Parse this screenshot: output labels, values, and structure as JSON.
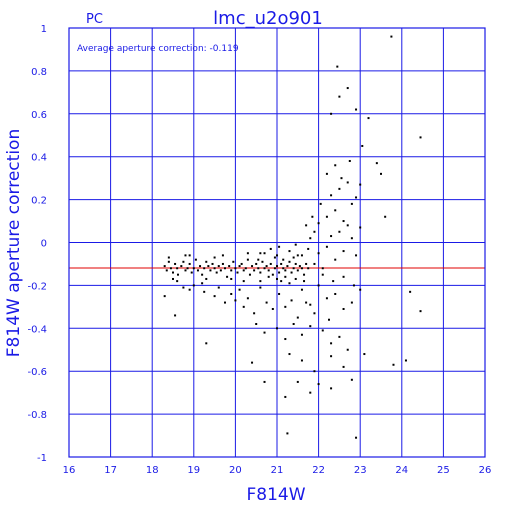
{
  "chart_data": {
    "type": "scatter",
    "corner_label": "PC",
    "title": "lmc_u2o901",
    "xlabel": "F814W",
    "ylabel": "F814W aperture correction",
    "annotation": "Average aperture correction: -0.119",
    "xlim": [
      16,
      26
    ],
    "ylim": [
      -1,
      1
    ],
    "xticks": [
      16,
      17,
      18,
      19,
      20,
      21,
      22,
      23,
      24,
      25,
      26
    ],
    "yticks": [
      -1,
      -0.8,
      -0.6,
      -0.4,
      -0.2,
      0,
      0.2,
      0.4,
      0.6,
      0.8,
      1
    ],
    "ytick_labels": [
      "-1",
      "-0.8",
      "-0.6",
      "-0.4",
      "-0.2",
      "0",
      "0.2",
      "0.4",
      "0.6",
      "0.8",
      "1"
    ],
    "grid": true,
    "reference_line": {
      "y": -0.119,
      "color": "#e00000"
    },
    "colors": {
      "axes": "#1a1ae6",
      "points": "#000000",
      "reference": "#e00000"
    },
    "points": [
      [
        18.3,
        -0.11
      ],
      [
        18.35,
        -0.13
      ],
      [
        18.4,
        -0.09
      ],
      [
        18.45,
        -0.12
      ],
      [
        18.5,
        -0.14
      ],
      [
        18.55,
        -0.1
      ],
      [
        18.6,
        -0.12
      ],
      [
        18.62,
        -0.15
      ],
      [
        18.7,
        -0.11
      ],
      [
        18.75,
        -0.09
      ],
      [
        18.8,
        -0.13
      ],
      [
        18.85,
        -0.12
      ],
      [
        18.9,
        -0.1
      ],
      [
        18.95,
        -0.14
      ],
      [
        19.0,
        -0.12
      ],
      [
        19.05,
        -0.08
      ],
      [
        19.1,
        -0.13
      ],
      [
        19.15,
        -0.11
      ],
      [
        19.2,
        -0.15
      ],
      [
        19.25,
        -0.12
      ],
      [
        19.3,
        -0.09
      ],
      [
        19.35,
        -0.11
      ],
      [
        19.4,
        -0.13
      ],
      [
        19.45,
        -0.1
      ],
      [
        19.5,
        -0.12
      ],
      [
        19.55,
        -0.14
      ],
      [
        19.6,
        -0.11
      ],
      [
        19.65,
        -0.13
      ],
      [
        19.7,
        -0.1
      ],
      [
        19.75,
        -0.12
      ],
      [
        19.8,
        -0.16
      ],
      [
        19.85,
        -0.11
      ],
      [
        19.9,
        -0.13
      ],
      [
        19.95,
        -0.09
      ],
      [
        20.0,
        -0.12
      ],
      [
        20.05,
        -0.14
      ],
      [
        20.1,
        -0.11
      ],
      [
        20.15,
        -0.1
      ],
      [
        20.2,
        -0.13
      ],
      [
        20.25,
        -0.12
      ],
      [
        20.3,
        -0.08
      ],
      [
        20.35,
        -0.15
      ],
      [
        20.4,
        -0.11
      ],
      [
        20.45,
        -0.13
      ],
      [
        20.5,
        -0.1
      ],
      [
        20.55,
        -0.12
      ],
      [
        20.6,
        -0.14
      ],
      [
        20.65,
        -0.09
      ],
      [
        20.7,
        -0.12
      ],
      [
        20.75,
        -0.11
      ],
      [
        20.8,
        -0.13
      ],
      [
        20.85,
        -0.1
      ],
      [
        20.9,
        -0.15
      ],
      [
        20.95,
        -0.12
      ],
      [
        21.0,
        -0.11
      ],
      [
        21.05,
        -0.14
      ],
      [
        21.1,
        -0.1
      ],
      [
        21.15,
        -0.12
      ],
      [
        21.2,
        -0.13
      ],
      [
        21.25,
        -0.11
      ],
      [
        21.3,
        -0.09
      ],
      [
        21.35,
        -0.14
      ],
      [
        21.4,
        -0.12
      ],
      [
        21.45,
        -0.1
      ],
      [
        21.5,
        -0.13
      ],
      [
        21.55,
        -0.11
      ],
      [
        21.6,
        -0.12
      ],
      [
        21.65,
        -0.15
      ],
      [
        21.7,
        -0.1
      ],
      [
        21.75,
        -0.12
      ],
      [
        18.4,
        -0.07
      ],
      [
        18.6,
        -0.18
      ],
      [
        18.9,
        -0.06
      ],
      [
        19.2,
        -0.19
      ],
      [
        19.5,
        -0.07
      ],
      [
        19.9,
        -0.17
      ],
      [
        20.3,
        -0.05
      ],
      [
        20.6,
        -0.18
      ],
      [
        21.0,
        -0.06
      ],
      [
        21.3,
        -0.19
      ],
      [
        18.5,
        -0.17
      ],
      [
        18.8,
        -0.06
      ],
      [
        19.3,
        -0.17
      ],
      [
        19.7,
        -0.06
      ],
      [
        20.2,
        -0.18
      ],
      [
        20.7,
        -0.05
      ],
      [
        21.1,
        -0.18
      ],
      [
        21.5,
        -0.06
      ],
      [
        18.3,
        -0.25
      ],
      [
        18.55,
        -0.34
      ],
      [
        18.75,
        -0.21
      ],
      [
        19.0,
        -0.2
      ],
      [
        19.25,
        -0.23
      ],
      [
        19.5,
        -0.25
      ],
      [
        19.75,
        -0.28
      ],
      [
        19.9,
        -0.24
      ],
      [
        20.1,
        -0.22
      ],
      [
        20.2,
        -0.3
      ],
      [
        20.3,
        -0.26
      ],
      [
        20.45,
        -0.33
      ],
      [
        20.6,
        -0.21
      ],
      [
        20.75,
        -0.28
      ],
      [
        20.9,
        -0.31
      ],
      [
        21.05,
        -0.24
      ],
      [
        21.2,
        -0.3
      ],
      [
        21.35,
        -0.27
      ],
      [
        21.5,
        -0.35
      ],
      [
        21.6,
        -0.22
      ],
      [
        21.8,
        -0.29
      ],
      [
        22.0,
        -0.2
      ],
      [
        22.2,
        -0.26
      ],
      [
        22.4,
        -0.24
      ],
      [
        22.6,
        -0.31
      ],
      [
        22.8,
        -0.28
      ],
      [
        23.0,
        -0.22
      ],
      [
        20.5,
        -0.38
      ],
      [
        20.7,
        -0.42
      ],
      [
        21.0,
        -0.4
      ],
      [
        21.2,
        -0.45
      ],
      [
        21.4,
        -0.38
      ],
      [
        21.6,
        -0.43
      ],
      [
        21.8,
        -0.39
      ],
      [
        22.1,
        -0.41
      ],
      [
        22.3,
        -0.47
      ],
      [
        22.5,
        -0.44
      ],
      [
        22.7,
        -0.5
      ],
      [
        21.3,
        -0.52
      ],
      [
        21.6,
        -0.55
      ],
      [
        21.9,
        -0.6
      ],
      [
        22.3,
        -0.53
      ],
      [
        22.6,
        -0.58
      ],
      [
        23.1,
        -0.52
      ],
      [
        21.2,
        -0.72
      ],
      [
        21.5,
        -0.65
      ],
      [
        21.8,
        -0.7
      ],
      [
        22.0,
        -0.66
      ],
      [
        22.3,
        -0.68
      ],
      [
        22.8,
        -0.64
      ],
      [
        20.7,
        -0.65
      ],
      [
        20.4,
        -0.56
      ],
      [
        19.3,
        -0.47
      ],
      [
        21.25,
        -0.89
      ],
      [
        22.9,
        -0.91
      ],
      [
        23.8,
        -0.57
      ],
      [
        24.1,
        -0.55
      ],
      [
        24.2,
        -0.23
      ],
      [
        24.45,
        -0.32
      ],
      [
        21.9,
        -0.1
      ],
      [
        22.0,
        -0.05
      ],
      [
        22.1,
        -0.12
      ],
      [
        22.2,
        -0.02
      ],
      [
        22.3,
        0.03
      ],
      [
        22.4,
        -0.08
      ],
      [
        22.5,
        0.05
      ],
      [
        22.6,
        -0.04
      ],
      [
        22.7,
        0.08
      ],
      [
        22.8,
        0.02
      ],
      [
        22.9,
        -0.06
      ],
      [
        23.0,
        0.07
      ],
      [
        21.8,
        0.02
      ],
      [
        21.9,
        0.05
      ],
      [
        22.0,
        0.09
      ],
      [
        22.2,
        0.12
      ],
      [
        22.4,
        0.15
      ],
      [
        22.6,
        0.1
      ],
      [
        22.8,
        0.18
      ],
      [
        21.7,
        0.08
      ],
      [
        21.85,
        0.12
      ],
      [
        22.05,
        0.18
      ],
      [
        22.3,
        0.22
      ],
      [
        22.5,
        0.25
      ],
      [
        22.7,
        0.28
      ],
      [
        22.9,
        0.21
      ],
      [
        22.2,
        0.32
      ],
      [
        22.4,
        0.36
      ],
      [
        22.55,
        0.3
      ],
      [
        22.75,
        0.38
      ],
      [
        23.0,
        0.27
      ],
      [
        23.4,
        0.37
      ],
      [
        23.5,
        0.32
      ],
      [
        23.6,
        0.12
      ],
      [
        22.3,
        0.6
      ],
      [
        22.5,
        0.68
      ],
      [
        22.7,
        0.72
      ],
      [
        22.9,
        0.62
      ],
      [
        23.2,
        0.58
      ],
      [
        22.45,
        0.82
      ],
      [
        23.75,
        0.96
      ],
      [
        24.45,
        0.49
      ],
      [
        23.05,
        0.45
      ],
      [
        22.1,
        -0.15
      ],
      [
        22.35,
        -0.18
      ],
      [
        22.6,
        -0.16
      ],
      [
        22.85,
        -0.2
      ],
      [
        20.0,
        -0.27
      ],
      [
        19.6,
        -0.21
      ],
      [
        18.9,
        -0.22
      ],
      [
        21.7,
        -0.28
      ],
      [
        21.9,
        -0.33
      ],
      [
        22.25,
        -0.36
      ],
      [
        20.6,
        -0.05
      ],
      [
        20.85,
        -0.03
      ],
      [
        21.05,
        -0.02
      ],
      [
        21.3,
        -0.04
      ],
      [
        21.45,
        -0.01
      ],
      [
        21.6,
        -0.06
      ],
      [
        21.75,
        -0.03
      ],
      [
        20.95,
        -0.07
      ],
      [
        21.15,
        -0.08
      ],
      [
        21.4,
        -0.07
      ],
      [
        20.55,
        -0.08
      ],
      [
        20.8,
        -0.16
      ],
      [
        21.0,
        -0.17
      ],
      [
        21.2,
        -0.16
      ],
      [
        21.45,
        -0.17
      ],
      [
        21.65,
        -0.18
      ]
    ]
  }
}
